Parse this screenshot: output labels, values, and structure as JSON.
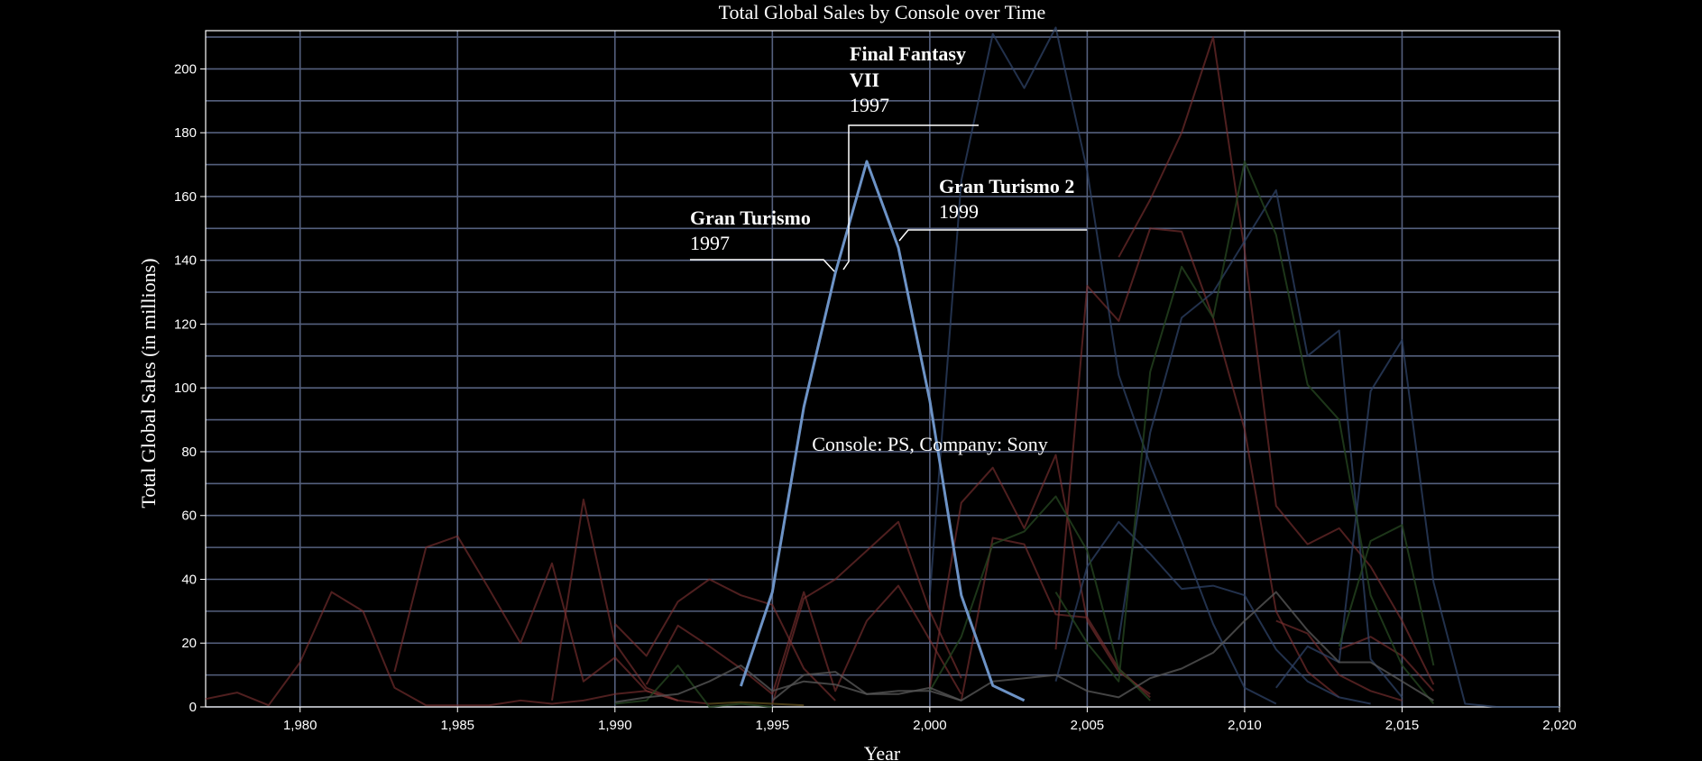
{
  "chart_data": {
    "type": "line",
    "title": "Total Global Sales by Console over Time",
    "xlabel": "Year",
    "ylabel": "Total Global Sales (in millions)",
    "xlim": [
      1977,
      2020
    ],
    "ylim": [
      0,
      212
    ],
    "x_ticks": [
      1980,
      1985,
      1990,
      1995,
      2000,
      2005,
      2010,
      2015,
      2020
    ],
    "x_tick_labels": [
      "1,980",
      "1,985",
      "1,990",
      "1,995",
      "2,000",
      "2,005",
      "2,010",
      "2,015",
      "2,020"
    ],
    "y_ticks": [
      0,
      20,
      40,
      60,
      80,
      100,
      120,
      140,
      160,
      180,
      200
    ],
    "y_tick_labels": [
      "0",
      "20",
      "40",
      "60",
      "80",
      "100",
      "120",
      "140",
      "160",
      "180",
      "200"
    ],
    "grid": true,
    "highlight_label": "Console: PS, Company: Sony",
    "series": [
      {
        "color": "#6d93c6",
        "opacity": 1,
        "width": 3,
        "points": [
          [
            1994,
            6.5
          ],
          [
            1995,
            36
          ],
          [
            1996,
            94
          ],
          [
            1997,
            136
          ],
          [
            1998,
            171
          ],
          [
            1999,
            144
          ],
          [
            2000,
            96
          ],
          [
            2001,
            35
          ],
          [
            2002,
            6.7
          ],
          [
            2003,
            2
          ]
        ]
      },
      {
        "color": "#7a3030",
        "opacity": 0.65,
        "width": 2,
        "points": [
          [
            1977,
            2.5
          ],
          [
            1978,
            4.5
          ],
          [
            1979,
            0.5
          ],
          [
            1980,
            14
          ],
          [
            1981,
            36
          ],
          [
            1982,
            30
          ],
          [
            1983,
            6
          ],
          [
            1984,
            0.5
          ],
          [
            1985,
            0.5
          ],
          [
            1986,
            0.5
          ],
          [
            1987,
            2
          ],
          [
            1988,
            1
          ],
          [
            1989,
            2
          ],
          [
            1990,
            4
          ],
          [
            1991,
            5
          ],
          [
            1992,
            2
          ]
        ]
      },
      {
        "color": "#7a3030",
        "opacity": 0.65,
        "width": 2,
        "points": [
          [
            1983,
            11
          ],
          [
            1984,
            50
          ],
          [
            1985,
            53.5
          ],
          [
            1986,
            37
          ],
          [
            1987,
            20
          ],
          [
            1988,
            45
          ],
          [
            1989,
            8
          ],
          [
            1990,
            15.5
          ],
          [
            1991,
            5
          ],
          [
            1992,
            2
          ]
        ]
      },
      {
        "color": "#7a3030",
        "opacity": 0.65,
        "width": 2,
        "points": [
          [
            1988,
            2
          ],
          [
            1989,
            65
          ],
          [
            1990,
            20
          ],
          [
            1991,
            6
          ],
          [
            1992,
            2
          ],
          [
            1993,
            1
          ]
        ]
      },
      {
        "color": "#7a3030",
        "opacity": 0.65,
        "width": 2,
        "points": [
          [
            1990,
            26
          ],
          [
            1991,
            16
          ],
          [
            1992,
            33
          ],
          [
            1993,
            40
          ],
          [
            1994,
            35
          ],
          [
            1995,
            32
          ],
          [
            1996,
            12
          ],
          [
            1997,
            2
          ]
        ]
      },
      {
        "color": "#7a3030",
        "opacity": 0.65,
        "width": 2,
        "points": [
          [
            1991,
            7
          ],
          [
            1992,
            25.5
          ],
          [
            1993,
            19
          ],
          [
            1994,
            12
          ],
          [
            1995,
            4
          ],
          [
            1996,
            36
          ],
          [
            1997,
            5
          ],
          [
            1998,
            27
          ],
          [
            1999,
            38
          ],
          [
            2000,
            21
          ],
          [
            2001,
            4
          ]
        ]
      },
      {
        "color": "#7a3030",
        "opacity": 0.65,
        "width": 2,
        "points": [
          [
            1995,
            1
          ],
          [
            1996,
            34
          ],
          [
            1997,
            40
          ],
          [
            1998,
            49
          ],
          [
            1999,
            58
          ],
          [
            2000,
            30
          ],
          [
            2001,
            9
          ]
        ]
      },
      {
        "color": "#7a3030",
        "opacity": 0.65,
        "width": 2,
        "points": [
          [
            2000,
            6
          ],
          [
            2001,
            64
          ],
          [
            2002,
            75
          ],
          [
            2003,
            56
          ],
          [
            2004,
            79
          ],
          [
            2005,
            27
          ],
          [
            2006,
            11
          ],
          [
            2007,
            4
          ]
        ]
      },
      {
        "color": "#7a3030",
        "opacity": 0.65,
        "width": 2,
        "points": [
          [
            2001,
            2
          ],
          [
            2002,
            53
          ],
          [
            2003,
            51
          ],
          [
            2004,
            29
          ],
          [
            2005,
            28
          ],
          [
            2006,
            12
          ],
          [
            2007,
            3
          ]
        ]
      },
      {
        "color": "#7a3030",
        "opacity": 0.65,
        "width": 2,
        "points": [
          [
            2004,
            18
          ],
          [
            2005,
            132
          ],
          [
            2006,
            121
          ],
          [
            2007,
            150
          ],
          [
            2008,
            149
          ],
          [
            2009,
            122
          ],
          [
            2010,
            87
          ],
          [
            2011,
            30
          ],
          [
            2012,
            11
          ],
          [
            2013,
            3
          ]
        ]
      },
      {
        "color": "#7a3030",
        "opacity": 0.65,
        "width": 2,
        "points": [
          [
            2006,
            141
          ],
          [
            2007,
            159
          ],
          [
            2008,
            180
          ],
          [
            2009,
            210
          ],
          [
            2010,
            143
          ],
          [
            2011,
            63
          ],
          [
            2012,
            51
          ],
          [
            2013,
            56
          ],
          [
            2014,
            44
          ],
          [
            2015,
            27
          ],
          [
            2016,
            7
          ]
        ]
      },
      {
        "color": "#7a3030",
        "opacity": 0.65,
        "width": 2,
        "points": [
          [
            2011,
            27
          ],
          [
            2012,
            23
          ],
          [
            2013,
            10
          ],
          [
            2014,
            5
          ],
          [
            2015,
            2
          ]
        ]
      },
      {
        "color": "#7a3030",
        "opacity": 0.65,
        "width": 2,
        "points": [
          [
            2013,
            18
          ],
          [
            2014,
            22
          ],
          [
            2015,
            16
          ],
          [
            2016,
            5
          ]
        ]
      },
      {
        "color": "#2e4266",
        "opacity": 0.75,
        "width": 2,
        "points": [
          [
            2000,
            35
          ],
          [
            2001,
            165
          ],
          [
            2002,
            211
          ],
          [
            2003,
            194
          ],
          [
            2004,
            213
          ],
          [
            2005,
            168
          ],
          [
            2006,
            104
          ],
          [
            2007,
            76
          ],
          [
            2008,
            52
          ],
          [
            2009,
            26
          ],
          [
            2010,
            6
          ],
          [
            2011,
            1
          ]
        ]
      },
      {
        "color": "#2e4266",
        "opacity": 0.75,
        "width": 2,
        "points": [
          [
            2004,
            8
          ],
          [
            2005,
            44
          ],
          [
            2006,
            58
          ],
          [
            2007,
            48
          ],
          [
            2008,
            37
          ],
          [
            2009,
            38
          ],
          [
            2010,
            35
          ],
          [
            2011,
            18
          ],
          [
            2012,
            8
          ],
          [
            2013,
            3
          ],
          [
            2014,
            1
          ]
        ]
      },
      {
        "color": "#2e4266",
        "opacity": 0.75,
        "width": 2,
        "points": [
          [
            2006,
            21
          ],
          [
            2007,
            86
          ],
          [
            2008,
            122
          ],
          [
            2009,
            130
          ],
          [
            2010,
            146
          ],
          [
            2011,
            162
          ],
          [
            2012,
            110
          ],
          [
            2013,
            118
          ],
          [
            2014,
            15
          ],
          [
            2015,
            3
          ]
        ]
      },
      {
        "color": "#2e4266",
        "opacity": 0.75,
        "width": 2,
        "points": [
          [
            2011,
            6
          ],
          [
            2012,
            19
          ],
          [
            2013,
            14
          ],
          [
            2014,
            99
          ],
          [
            2015,
            115
          ],
          [
            2016,
            39
          ],
          [
            2017,
            1
          ],
          [
            2018,
            0
          ],
          [
            2019,
            0
          ],
          [
            2020,
            0
          ]
        ]
      },
      {
        "color": "#24431f",
        "opacity": 0.8,
        "width": 2,
        "points": [
          [
            2004,
            36
          ],
          [
            2005,
            20
          ],
          [
            2006,
            8
          ],
          [
            2007,
            105
          ],
          [
            2008,
            138
          ],
          [
            2009,
            122
          ],
          [
            2010,
            171
          ],
          [
            2011,
            148
          ],
          [
            2012,
            101
          ],
          [
            2013,
            90
          ],
          [
            2014,
            35
          ],
          [
            2015,
            13
          ],
          [
            2016,
            1
          ]
        ]
      },
      {
        "color": "#24431f",
        "opacity": 0.8,
        "width": 2,
        "points": [
          [
            2000,
            5
          ],
          [
            2001,
            22
          ],
          [
            2002,
            51
          ],
          [
            2003,
            55
          ],
          [
            2004,
            66
          ],
          [
            2005,
            49
          ],
          [
            2006,
            12
          ],
          [
            2007,
            2
          ]
        ]
      },
      {
        "color": "#24431f",
        "opacity": 0.8,
        "width": 2,
        "points": [
          [
            2013,
            19
          ],
          [
            2014,
            52
          ],
          [
            2015,
            57
          ],
          [
            2016,
            13
          ]
        ]
      },
      {
        "color": "#24431f",
        "opacity": 0.8,
        "width": 2,
        "points": [
          [
            1990,
            1
          ],
          [
            1991,
            2
          ],
          [
            1992,
            13
          ],
          [
            1993,
            0
          ],
          [
            1994,
            1
          ],
          [
            1995,
            0
          ]
        ]
      },
      {
        "color": "#555555",
        "opacity": 0.8,
        "width": 2,
        "points": [
          [
            1990,
            1.5
          ],
          [
            1991,
            3
          ],
          [
            1992,
            4
          ],
          [
            1993,
            8
          ],
          [
            1994,
            13
          ],
          [
            1995,
            5
          ],
          [
            1996,
            8
          ],
          [
            1997,
            7
          ],
          [
            1998,
            4
          ],
          [
            1999,
            5
          ],
          [
            2000,
            5
          ],
          [
            2001,
            2
          ],
          [
            2002,
            8
          ],
          [
            2003,
            9
          ],
          [
            2004,
            10
          ],
          [
            2005,
            5
          ],
          [
            2006,
            3
          ],
          [
            2007,
            9
          ],
          [
            2008,
            12
          ],
          [
            2009,
            17
          ],
          [
            2010,
            27
          ],
          [
            2011,
            36
          ],
          [
            2012,
            24
          ],
          [
            2013,
            14
          ],
          [
            2014,
            14
          ],
          [
            2015,
            8
          ],
          [
            2016,
            2
          ]
        ]
      },
      {
        "color": "#555555",
        "opacity": 0.8,
        "width": 2,
        "points": [
          [
            1995,
            2
          ],
          [
            1996,
            10
          ],
          [
            1997,
            11
          ],
          [
            1998,
            4
          ],
          [
            1999,
            4
          ],
          [
            2000,
            6
          ],
          [
            2001,
            2
          ]
        ]
      },
      {
        "color": "#5a4a1a",
        "opacity": 0.8,
        "width": 2,
        "points": [
          [
            1993,
            1
          ],
          [
            1994,
            1.5
          ],
          [
            1995,
            1
          ],
          [
            1996,
            0.5
          ]
        ]
      }
    ]
  },
  "annotations": [
    {
      "title_lines": [
        "Final Fantasy",
        "VII"
      ],
      "year": "1997"
    },
    {
      "title_lines": [
        "Gran Turismo 2"
      ],
      "year": "1999"
    },
    {
      "title_lines": [
        "Gran Turismo"
      ],
      "year": "1997"
    }
  ]
}
